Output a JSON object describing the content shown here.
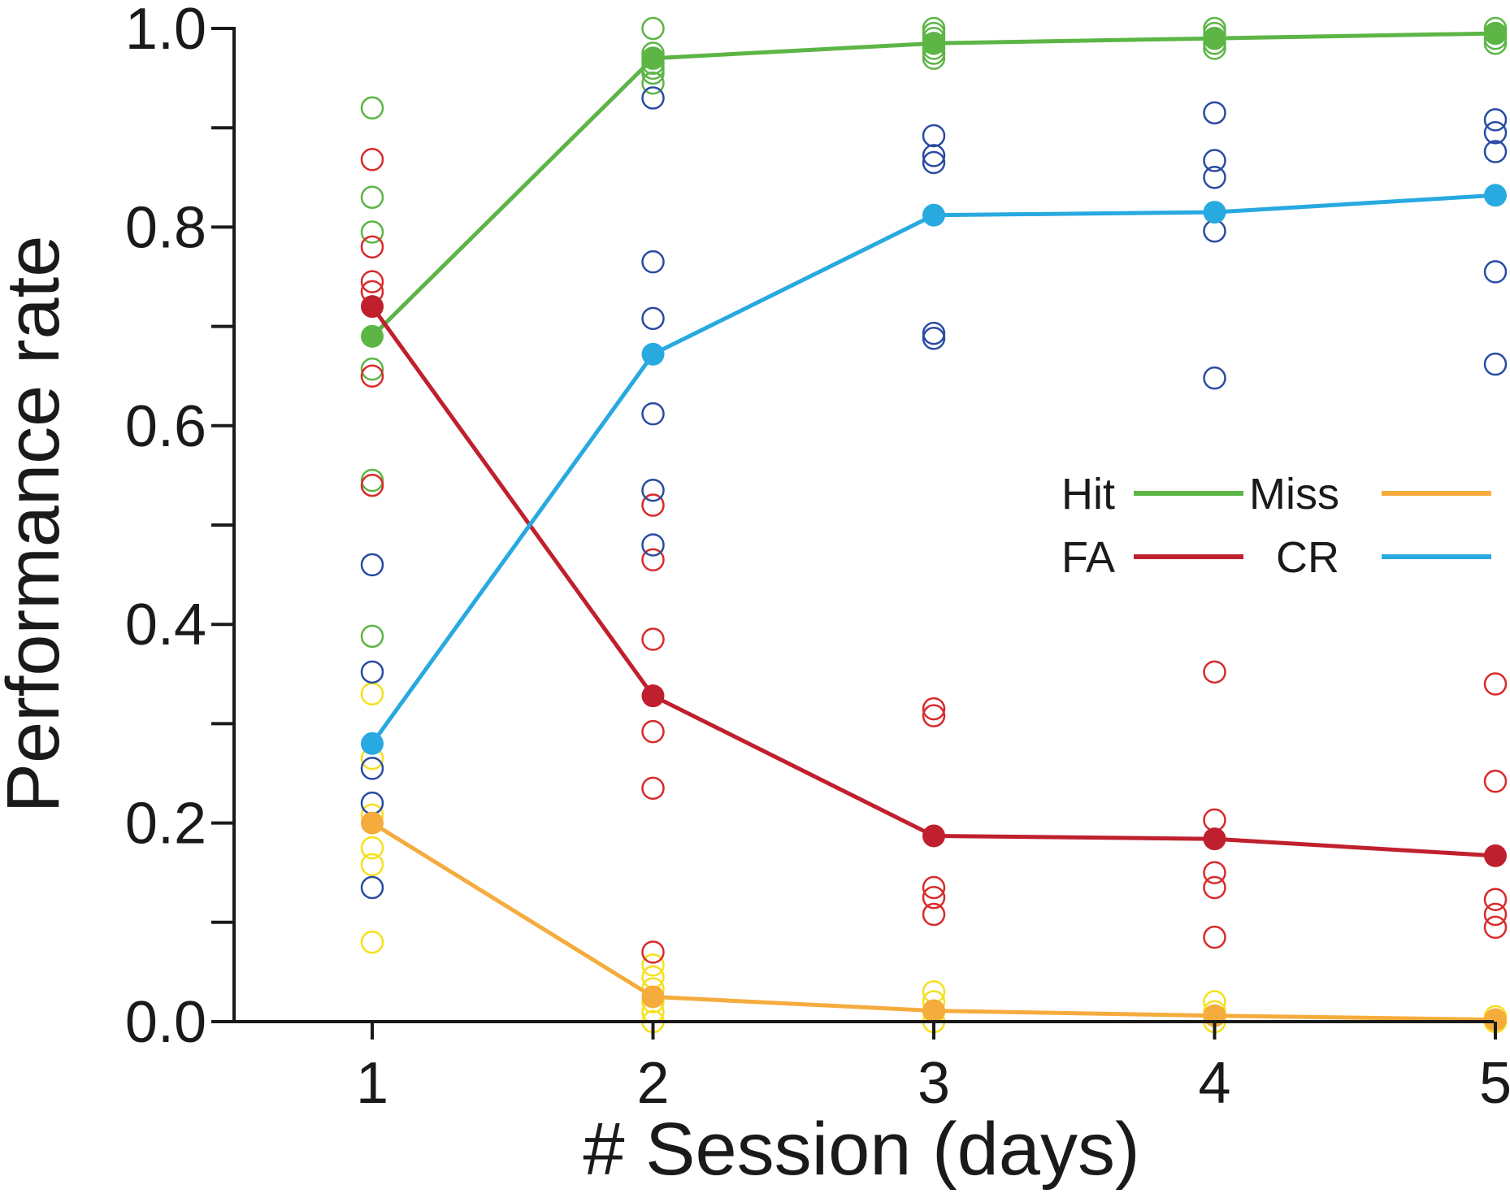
{
  "chart_data": {
    "type": "line",
    "title": "",
    "xlabel": "# Session (days)",
    "ylabel": "Performance rate",
    "x": [
      1,
      2,
      3,
      4,
      5
    ],
    "xticks": [
      "1",
      "2",
      "3",
      "4",
      "5"
    ],
    "xlim": [
      0.5,
      5.0
    ],
    "ylim": [
      0.0,
      1.0
    ],
    "yticks": [
      "0.0",
      "0.2",
      "0.4",
      "0.6",
      "0.8",
      "1.0"
    ],
    "legend_position": "center-right",
    "series": [
      {
        "name": "Hit",
        "color": "#5cb545",
        "point_color": "#5cb545",
        "mean": [
          0.69,
          0.97,
          0.985,
          0.99,
          0.995
        ],
        "individual": [
          [
            0.92,
            0.83,
            0.795,
            0.657,
            0.545,
            0.388
          ],
          [
            1.0,
            0.975,
            0.97,
            0.965,
            0.96,
            0.955,
            0.945
          ],
          [
            1.0,
            0.995,
            0.99,
            0.985,
            0.98,
            0.975,
            0.97
          ],
          [
            1.0,
            0.995,
            0.99,
            0.985,
            0.98
          ],
          [
            1.0,
            0.995,
            0.99,
            0.985
          ]
        ]
      },
      {
        "name": "Miss",
        "color": "#f5ac3d",
        "point_color": "#f5e01c",
        "mean": [
          0.2,
          0.025,
          0.011,
          0.006,
          0.002
        ],
        "individual": [
          [
            0.33,
            0.265,
            0.208,
            0.175,
            0.158,
            0.08
          ],
          [
            0.057,
            0.045,
            0.033,
            0.02,
            0.01,
            0.0
          ],
          [
            0.03,
            0.02,
            0.01,
            0.0
          ],
          [
            0.02,
            0.01,
            0.0
          ],
          [
            0.005,
            0.0
          ]
        ]
      },
      {
        "name": "FA",
        "color": "#c0202d",
        "point_color": "#d92a2a",
        "mean": [
          0.72,
          0.328,
          0.187,
          0.184,
          0.167
        ],
        "individual": [
          [
            0.868,
            0.78,
            0.745,
            0.735,
            0.65,
            0.54
          ],
          [
            0.52,
            0.465,
            0.385,
            0.292,
            0.235,
            0.07
          ],
          [
            0.315,
            0.308,
            0.135,
            0.125,
            0.108
          ],
          [
            0.352,
            0.203,
            0.15,
            0.135,
            0.085
          ],
          [
            0.34,
            0.242,
            0.123,
            0.108,
            0.095
          ]
        ]
      },
      {
        "name": "CR",
        "color": "#28a9e0",
        "point_color": "#2a4ba2",
        "mean": [
          0.28,
          0.672,
          0.812,
          0.815,
          0.832
        ],
        "individual": [
          [
            0.46,
            0.352,
            0.255,
            0.22,
            0.135
          ],
          [
            0.93,
            0.765,
            0.708,
            0.612,
            0.535,
            0.48
          ],
          [
            0.892,
            0.872,
            0.865,
            0.693,
            0.688
          ],
          [
            0.915,
            0.867,
            0.85,
            0.796,
            0.648
          ],
          [
            0.908,
            0.895,
            0.876,
            0.755,
            0.662
          ]
        ]
      }
    ]
  }
}
